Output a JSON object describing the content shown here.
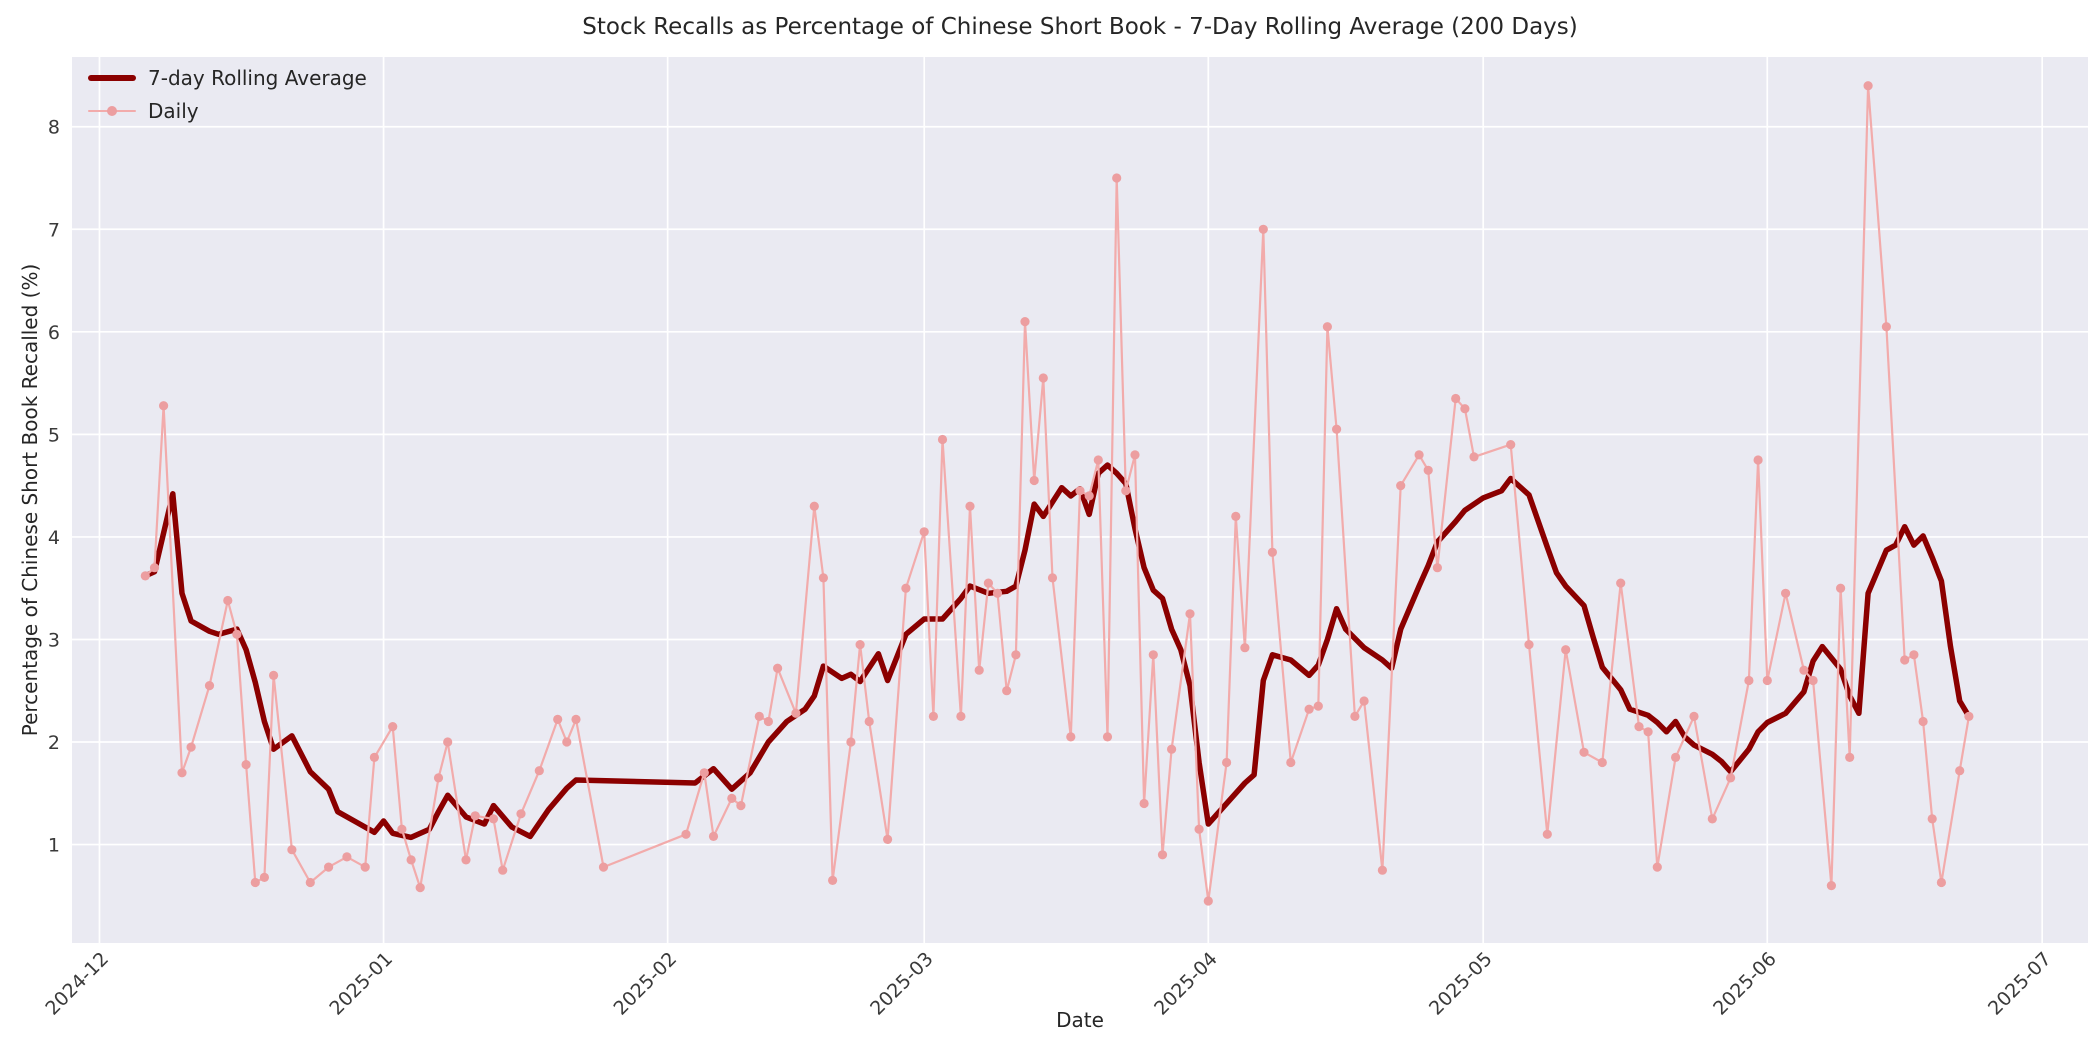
{
  "chart_data": {
    "type": "line",
    "title": "Stock Recalls as Percentage of Chinese Short Book - 7-Day Rolling Average (200 Days)",
    "xlabel": "Date",
    "ylabel": "Percentage of Chinese Short Book Recalled (%)",
    "grid": true,
    "legend_position": "upper-left",
    "plot_bg": "#eaeaf2",
    "grid_color": "#ffffff",
    "text_color": "#262626",
    "tick_color": "#3a3a3a",
    "x_domain": [
      "2024-11-28",
      "2025-07-06"
    ],
    "ylim": [
      0.04,
      8.68
    ],
    "y_ticks": [
      1,
      2,
      3,
      4,
      5,
      6,
      7,
      8
    ],
    "x_ticks": [
      {
        "date": "2024-12-01",
        "label": "2024-12"
      },
      {
        "date": "2025-01-01",
        "label": "2025-01"
      },
      {
        "date": "2025-02-01",
        "label": "2025-02"
      },
      {
        "date": "2025-03-01",
        "label": "2025-03"
      },
      {
        "date": "2025-04-01",
        "label": "2025-04"
      },
      {
        "date": "2025-05-01",
        "label": "2025-05"
      },
      {
        "date": "2025-06-01",
        "label": "2025-06"
      },
      {
        "date": "2025-07-01",
        "label": "2025-07"
      }
    ],
    "series": [
      {
        "name": "7-day Rolling Average",
        "color": "#8b0000",
        "line_width": 5.5,
        "markers": false,
        "points": [
          [
            "2024-12-06",
            3.62
          ],
          [
            "2024-12-07",
            3.66
          ],
          [
            "2024-12-09",
            4.42
          ],
          [
            "2024-12-10",
            3.45
          ],
          [
            "2024-12-11",
            3.18
          ],
          [
            "2024-12-13",
            3.08
          ],
          [
            "2024-12-14",
            3.05
          ],
          [
            "2024-12-16",
            3.1
          ],
          [
            "2024-12-17",
            2.9
          ],
          [
            "2024-12-18",
            2.58
          ],
          [
            "2024-12-19",
            2.2
          ],
          [
            "2024-12-20",
            1.93
          ],
          [
            "2024-12-22",
            2.06
          ],
          [
            "2024-12-24",
            1.71
          ],
          [
            "2024-12-26",
            1.54
          ],
          [
            "2024-12-27",
            1.32
          ],
          [
            "2024-12-29",
            1.22
          ],
          [
            "2024-12-31",
            1.12
          ],
          [
            "2025-01-01",
            1.23
          ],
          [
            "2025-01-02",
            1.11
          ],
          [
            "2025-01-04",
            1.07
          ],
          [
            "2025-01-06",
            1.15
          ],
          [
            "2025-01-07",
            1.32
          ],
          [
            "2025-01-08",
            1.48
          ],
          [
            "2025-01-10",
            1.27
          ],
          [
            "2025-01-12",
            1.2
          ],
          [
            "2025-01-13",
            1.38
          ],
          [
            "2025-01-15",
            1.17
          ],
          [
            "2025-01-17",
            1.08
          ],
          [
            "2025-01-19",
            1.34
          ],
          [
            "2025-01-21",
            1.55
          ],
          [
            "2025-01-22",
            1.63
          ],
          [
            "2025-02-04",
            1.6
          ],
          [
            "2025-02-06",
            1.74
          ],
          [
            "2025-02-08",
            1.54
          ],
          [
            "2025-02-10",
            1.7
          ],
          [
            "2025-02-12",
            2.0
          ],
          [
            "2025-02-14",
            2.2
          ],
          [
            "2025-02-16",
            2.32
          ],
          [
            "2025-02-17",
            2.45
          ],
          [
            "2025-02-18",
            2.74
          ],
          [
            "2025-02-20",
            2.62
          ],
          [
            "2025-02-21",
            2.66
          ],
          [
            "2025-02-22",
            2.59
          ],
          [
            "2025-02-24",
            2.86
          ],
          [
            "2025-02-25",
            2.6
          ],
          [
            "2025-02-27",
            3.05
          ],
          [
            "2025-03-01",
            3.2
          ],
          [
            "2025-03-03",
            3.2
          ],
          [
            "2025-03-05",
            3.4
          ],
          [
            "2025-03-06",
            3.52
          ],
          [
            "2025-03-08",
            3.45
          ],
          [
            "2025-03-10",
            3.47
          ],
          [
            "2025-03-11",
            3.52
          ],
          [
            "2025-03-12",
            3.87
          ],
          [
            "2025-03-13",
            4.32
          ],
          [
            "2025-03-14",
            4.2
          ],
          [
            "2025-03-16",
            4.48
          ],
          [
            "2025-03-17",
            4.4
          ],
          [
            "2025-03-18",
            4.47
          ],
          [
            "2025-03-19",
            4.22
          ],
          [
            "2025-03-20",
            4.62
          ],
          [
            "2025-03-21",
            4.7
          ],
          [
            "2025-03-22",
            4.62
          ],
          [
            "2025-03-23",
            4.52
          ],
          [
            "2025-03-24",
            4.08
          ],
          [
            "2025-03-25",
            3.7
          ],
          [
            "2025-03-26",
            3.48
          ],
          [
            "2025-03-27",
            3.4
          ],
          [
            "2025-03-28",
            3.1
          ],
          [
            "2025-03-29",
            2.9
          ],
          [
            "2025-03-30",
            2.55
          ],
          [
            "2025-03-31",
            1.8
          ],
          [
            "2025-04-01",
            1.2
          ],
          [
            "2025-04-03",
            1.4
          ],
          [
            "2025-04-05",
            1.6
          ],
          [
            "2025-04-06",
            1.68
          ],
          [
            "2025-04-07",
            2.6
          ],
          [
            "2025-04-08",
            2.85
          ],
          [
            "2025-04-10",
            2.8
          ],
          [
            "2025-04-12",
            2.65
          ],
          [
            "2025-04-13",
            2.75
          ],
          [
            "2025-04-14",
            3.0
          ],
          [
            "2025-04-15",
            3.3
          ],
          [
            "2025-04-16",
            3.1
          ],
          [
            "2025-04-18",
            2.92
          ],
          [
            "2025-04-20",
            2.8
          ],
          [
            "2025-04-21",
            2.72
          ],
          [
            "2025-04-22",
            3.1
          ],
          [
            "2025-04-24",
            3.52
          ],
          [
            "2025-04-25",
            3.72
          ],
          [
            "2025-04-26",
            3.95
          ],
          [
            "2025-04-28",
            4.15
          ],
          [
            "2025-04-29",
            4.26
          ],
          [
            "2025-05-01",
            4.38
          ],
          [
            "2025-05-03",
            4.45
          ],
          [
            "2025-05-04",
            4.57
          ],
          [
            "2025-05-06",
            4.41
          ],
          [
            "2025-05-08",
            3.9
          ],
          [
            "2025-05-09",
            3.65
          ],
          [
            "2025-05-10",
            3.52
          ],
          [
            "2025-05-12",
            3.33
          ],
          [
            "2025-05-13",
            3.02
          ],
          [
            "2025-05-14",
            2.73
          ],
          [
            "2025-05-16",
            2.51
          ],
          [
            "2025-05-17",
            2.32
          ],
          [
            "2025-05-19",
            2.26
          ],
          [
            "2025-05-20",
            2.19
          ],
          [
            "2025-05-21",
            2.1
          ],
          [
            "2025-05-22",
            2.2
          ],
          [
            "2025-05-23",
            2.05
          ],
          [
            "2025-05-24",
            1.97
          ],
          [
            "2025-05-26",
            1.88
          ],
          [
            "2025-05-27",
            1.81
          ],
          [
            "2025-05-28",
            1.71
          ],
          [
            "2025-05-30",
            1.93
          ],
          [
            "2025-05-31",
            2.1
          ],
          [
            "2025-06-01",
            2.19
          ],
          [
            "2025-06-03",
            2.28
          ],
          [
            "2025-06-05",
            2.49
          ],
          [
            "2025-06-06",
            2.79
          ],
          [
            "2025-06-07",
            2.93
          ],
          [
            "2025-06-09",
            2.71
          ],
          [
            "2025-06-10",
            2.45
          ],
          [
            "2025-06-11",
            2.28
          ],
          [
            "2025-06-12",
            3.45
          ],
          [
            "2025-06-14",
            3.87
          ],
          [
            "2025-06-15",
            3.92
          ],
          [
            "2025-06-16",
            4.1
          ],
          [
            "2025-06-17",
            3.92
          ],
          [
            "2025-06-18",
            4.01
          ],
          [
            "2025-06-19",
            3.8
          ],
          [
            "2025-06-20",
            3.57
          ],
          [
            "2025-06-21",
            2.93
          ],
          [
            "2025-06-22",
            2.4
          ],
          [
            "2025-06-23",
            2.25
          ]
        ]
      },
      {
        "name": "Daily",
        "color": "#f2abab",
        "marker_color": "#ec9ea0",
        "line_width": 2.2,
        "markers": true,
        "points": [
          [
            "2024-12-06",
            3.62
          ],
          [
            "2024-12-07",
            3.7
          ],
          [
            "2024-12-08",
            5.28
          ],
          [
            "2024-12-10",
            1.7
          ],
          [
            "2024-12-11",
            1.95
          ],
          [
            "2024-12-13",
            2.55
          ],
          [
            "2024-12-15",
            3.38
          ],
          [
            "2024-12-16",
            3.05
          ],
          [
            "2024-12-17",
            1.78
          ],
          [
            "2024-12-18",
            0.63
          ],
          [
            "2024-12-19",
            0.68
          ],
          [
            "2024-12-20",
            2.65
          ],
          [
            "2024-12-22",
            0.95
          ],
          [
            "2024-12-24",
            0.63
          ],
          [
            "2024-12-26",
            0.78
          ],
          [
            "2024-12-28",
            0.88
          ],
          [
            "2024-12-30",
            0.78
          ],
          [
            "2024-12-31",
            1.85
          ],
          [
            "2025-01-02",
            2.15
          ],
          [
            "2025-01-03",
            1.15
          ],
          [
            "2025-01-04",
            0.85
          ],
          [
            "2025-01-05",
            0.58
          ],
          [
            "2025-01-07",
            1.65
          ],
          [
            "2025-01-08",
            2.0
          ],
          [
            "2025-01-10",
            0.85
          ],
          [
            "2025-01-11",
            1.28
          ],
          [
            "2025-01-13",
            1.25
          ],
          [
            "2025-01-14",
            0.75
          ],
          [
            "2025-01-16",
            1.3
          ],
          [
            "2025-01-18",
            1.72
          ],
          [
            "2025-01-20",
            2.22
          ],
          [
            "2025-01-21",
            2.0
          ],
          [
            "2025-01-22",
            2.22
          ],
          [
            "2025-01-25",
            0.78
          ],
          [
            "2025-02-03",
            1.1
          ],
          [
            "2025-02-05",
            1.7
          ],
          [
            "2025-02-06",
            1.08
          ],
          [
            "2025-02-08",
            1.45
          ],
          [
            "2025-02-09",
            1.38
          ],
          [
            "2025-02-11",
            2.25
          ],
          [
            "2025-02-12",
            2.2
          ],
          [
            "2025-02-13",
            2.72
          ],
          [
            "2025-02-15",
            2.28
          ],
          [
            "2025-02-17",
            4.3
          ],
          [
            "2025-02-18",
            3.6
          ],
          [
            "2025-02-19",
            0.65
          ],
          [
            "2025-02-21",
            2.0
          ],
          [
            "2025-02-22",
            2.95
          ],
          [
            "2025-02-23",
            2.2
          ],
          [
            "2025-02-25",
            1.05
          ],
          [
            "2025-02-27",
            3.5
          ],
          [
            "2025-03-01",
            4.05
          ],
          [
            "2025-03-02",
            2.25
          ],
          [
            "2025-03-03",
            4.95
          ],
          [
            "2025-03-05",
            2.25
          ],
          [
            "2025-03-06",
            4.3
          ],
          [
            "2025-03-07",
            2.7
          ],
          [
            "2025-03-08",
            3.55
          ],
          [
            "2025-03-09",
            3.45
          ],
          [
            "2025-03-10",
            2.5
          ],
          [
            "2025-03-11",
            2.85
          ],
          [
            "2025-03-12",
            6.1
          ],
          [
            "2025-03-13",
            4.55
          ],
          [
            "2025-03-14",
            5.55
          ],
          [
            "2025-03-15",
            3.6
          ],
          [
            "2025-03-17",
            2.05
          ],
          [
            "2025-03-18",
            4.45
          ],
          [
            "2025-03-19",
            4.4
          ],
          [
            "2025-03-20",
            4.75
          ],
          [
            "2025-03-21",
            2.05
          ],
          [
            "2025-03-22",
            7.5
          ],
          [
            "2025-03-23",
            4.45
          ],
          [
            "2025-03-24",
            4.8
          ],
          [
            "2025-03-25",
            1.4
          ],
          [
            "2025-03-26",
            2.85
          ],
          [
            "2025-03-27",
            0.9
          ],
          [
            "2025-03-28",
            1.93
          ],
          [
            "2025-03-30",
            3.25
          ],
          [
            "2025-03-31",
            1.15
          ],
          [
            "2025-04-01",
            0.45
          ],
          [
            "2025-04-03",
            1.8
          ],
          [
            "2025-04-04",
            4.2
          ],
          [
            "2025-04-05",
            2.92
          ],
          [
            "2025-04-07",
            7.0
          ],
          [
            "2025-04-08",
            3.85
          ],
          [
            "2025-04-10",
            1.8
          ],
          [
            "2025-04-12",
            2.32
          ],
          [
            "2025-04-13",
            2.35
          ],
          [
            "2025-04-14",
            6.05
          ],
          [
            "2025-04-15",
            5.05
          ],
          [
            "2025-04-17",
            2.25
          ],
          [
            "2025-04-18",
            2.4
          ],
          [
            "2025-04-20",
            0.75
          ],
          [
            "2025-04-22",
            4.5
          ],
          [
            "2025-04-24",
            4.8
          ],
          [
            "2025-04-25",
            4.65
          ],
          [
            "2025-04-26",
            3.7
          ],
          [
            "2025-04-28",
            5.35
          ],
          [
            "2025-04-29",
            5.25
          ],
          [
            "2025-04-30",
            4.78
          ],
          [
            "2025-05-04",
            4.9
          ],
          [
            "2025-05-06",
            2.95
          ],
          [
            "2025-05-08",
            1.1
          ],
          [
            "2025-05-10",
            2.9
          ],
          [
            "2025-05-12",
            1.9
          ],
          [
            "2025-05-14",
            1.8
          ],
          [
            "2025-05-16",
            3.55
          ],
          [
            "2025-05-18",
            2.15
          ],
          [
            "2025-05-19",
            2.1
          ],
          [
            "2025-05-20",
            0.78
          ],
          [
            "2025-05-22",
            1.85
          ],
          [
            "2025-05-24",
            2.25
          ],
          [
            "2025-05-26",
            1.25
          ],
          [
            "2025-05-28",
            1.65
          ],
          [
            "2025-05-30",
            2.6
          ],
          [
            "2025-05-31",
            4.75
          ],
          [
            "2025-06-01",
            2.6
          ],
          [
            "2025-06-03",
            3.45
          ],
          [
            "2025-06-05",
            2.7
          ],
          [
            "2025-06-06",
            2.6
          ],
          [
            "2025-06-08",
            0.6
          ],
          [
            "2025-06-09",
            3.5
          ],
          [
            "2025-06-10",
            1.85
          ],
          [
            "2025-06-12",
            8.4
          ],
          [
            "2025-06-14",
            6.05
          ],
          [
            "2025-06-16",
            2.8
          ],
          [
            "2025-06-17",
            2.85
          ],
          [
            "2025-06-18",
            2.2
          ],
          [
            "2025-06-19",
            1.25
          ],
          [
            "2025-06-20",
            0.63
          ],
          [
            "2025-06-22",
            1.72
          ],
          [
            "2025-06-23",
            2.25
          ]
        ]
      }
    ]
  }
}
